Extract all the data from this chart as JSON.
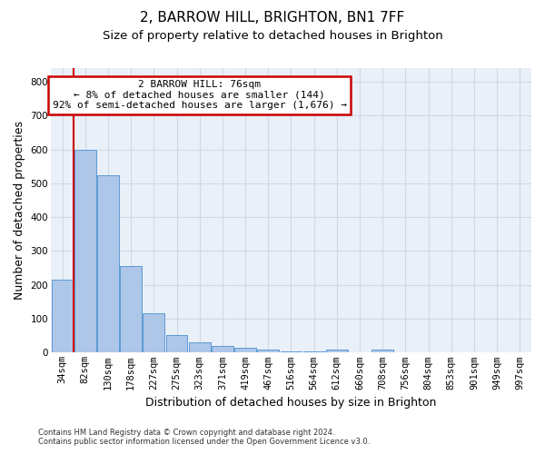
{
  "title": "2, BARROW HILL, BRIGHTON, BN1 7FF",
  "subtitle": "Size of property relative to detached houses in Brighton",
  "xlabel": "Distribution of detached houses by size in Brighton",
  "ylabel": "Number of detached properties",
  "categories": [
    "34sqm",
    "82sqm",
    "130sqm",
    "178sqm",
    "227sqm",
    "275sqm",
    "323sqm",
    "371sqm",
    "419sqm",
    "467sqm",
    "516sqm",
    "564sqm",
    "612sqm",
    "660sqm",
    "708sqm",
    "756sqm",
    "804sqm",
    "853sqm",
    "901sqm",
    "949sqm",
    "997sqm"
  ],
  "values": [
    215,
    600,
    525,
    255,
    115,
    52,
    30,
    20,
    15,
    10,
    5,
    5,
    10,
    0,
    10,
    0,
    0,
    0,
    0,
    0,
    0
  ],
  "bar_color": "#aec6e8",
  "bar_edge_color": "#5b9bd5",
  "grid_color": "#d0d8e8",
  "background_color": "#eaf0f8",
  "annotation_line1": "2 BARROW HILL: 76sqm",
  "annotation_line2": "← 8% of detached houses are smaller (144)",
  "annotation_line3": "92% of semi-detached houses are larger (1,676) →",
  "annotation_box_color": "#ffffff",
  "annotation_border_color": "#cc0000",
  "red_line_x": 1,
  "red_line_color": "#cc0000",
  "ylim": [
    0,
    840
  ],
  "yticks": [
    0,
    100,
    200,
    300,
    400,
    500,
    600,
    700,
    800
  ],
  "footer1": "Contains HM Land Registry data © Crown copyright and database right 2024.",
  "footer2": "Contains public sector information licensed under the Open Government Licence v3.0.",
  "title_fontsize": 11,
  "subtitle_fontsize": 9.5,
  "tick_fontsize": 7.5,
  "ylabel_fontsize": 9,
  "xlabel_fontsize": 9,
  "annotation_fontsize": 8,
  "footer_fontsize": 6
}
